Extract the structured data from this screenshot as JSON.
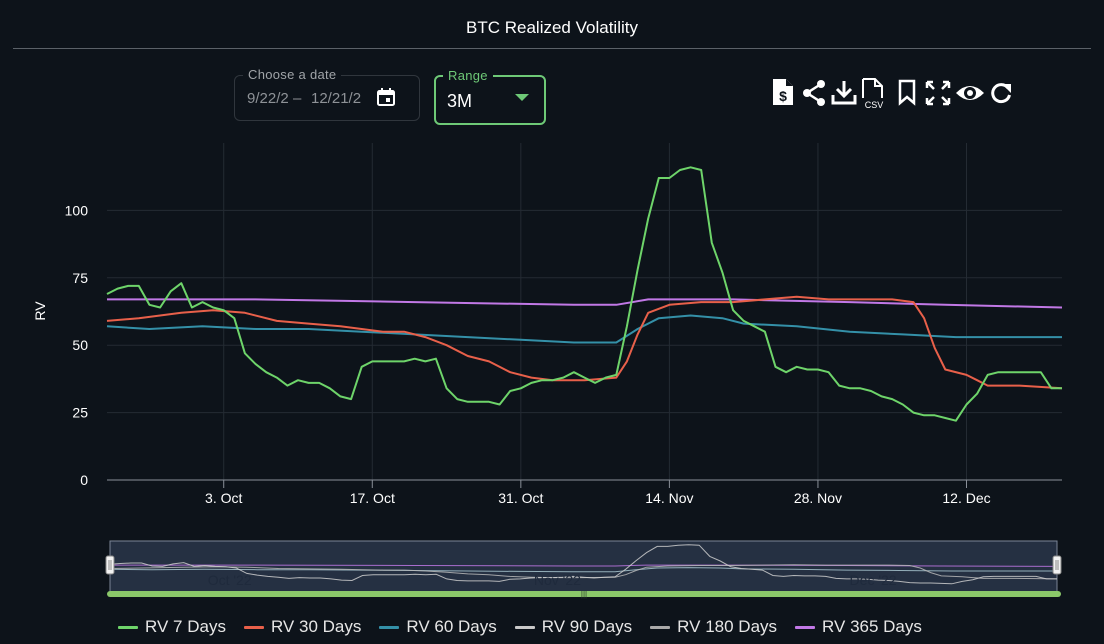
{
  "header": {
    "title": "BTC Realized Volatility"
  },
  "date_picker": {
    "label": "Choose a date",
    "start": "9/22/2",
    "separator": "–",
    "end": "12/21/2",
    "icon": "calendar-icon"
  },
  "range_select": {
    "label": "Range",
    "value": "3M",
    "icon": "caret-down-icon"
  },
  "toolbar": {
    "icons": [
      "dollar-file-icon",
      "share-icon",
      "download-icon",
      "csv-file-icon",
      "bookmark-icon",
      "fullscreen-icon",
      "eye-icon",
      "refresh-icon"
    ],
    "csv_label": "CSV"
  },
  "chart_data": {
    "type": "line",
    "title": "BTC Realized Volatility",
    "ylabel": "RV",
    "xlabel": "",
    "x_dates": [
      "2022-09-22",
      "2022-12-21"
    ],
    "ylim": [
      0,
      125
    ],
    "y_ticks": [
      0,
      25,
      50,
      75,
      100
    ],
    "x_ticks": [
      {
        "date": "2022-10-03",
        "label": "3. Oct"
      },
      {
        "date": "2022-10-17",
        "label": "17. Oct"
      },
      {
        "date": "2022-10-31",
        "label": "31. Oct"
      },
      {
        "date": "2022-11-14",
        "label": "14. Nov"
      },
      {
        "date": "2022-11-28",
        "label": "28. Nov"
      },
      {
        "date": "2022-12-12",
        "label": "12. Dec"
      }
    ],
    "grid": true,
    "legend_position": "bottom",
    "navigator": {
      "labels": [
        {
          "date": "2022-10-01",
          "label": "Oct '22"
        },
        {
          "date": "2022-11-01",
          "label": "Nov '22"
        },
        {
          "date": "2022-12-01",
          "label": "Dec '22"
        }
      ]
    },
    "series": [
      {
        "name": "RV 7 Days",
        "color": "#6ed46a",
        "points": [
          [
            "2022-09-22",
            69
          ],
          [
            "2022-09-23",
            71
          ],
          [
            "2022-09-24",
            72
          ],
          [
            "2022-09-25",
            72
          ],
          [
            "2022-09-26",
            65
          ],
          [
            "2022-09-27",
            64
          ],
          [
            "2022-09-28",
            70
          ],
          [
            "2022-09-29",
            73
          ],
          [
            "2022-09-30",
            64
          ],
          [
            "2022-10-01",
            66
          ],
          [
            "2022-10-02",
            64
          ],
          [
            "2022-10-03",
            63
          ],
          [
            "2022-10-04",
            60
          ],
          [
            "2022-10-05",
            47
          ],
          [
            "2022-10-06",
            43
          ],
          [
            "2022-10-07",
            40
          ],
          [
            "2022-10-08",
            38
          ],
          [
            "2022-10-09",
            35
          ],
          [
            "2022-10-10",
            37
          ],
          [
            "2022-10-11",
            36
          ],
          [
            "2022-10-12",
            36
          ],
          [
            "2022-10-13",
            34
          ],
          [
            "2022-10-14",
            31
          ],
          [
            "2022-10-15",
            30
          ],
          [
            "2022-10-16",
            42
          ],
          [
            "2022-10-17",
            44
          ],
          [
            "2022-10-18",
            44
          ],
          [
            "2022-10-19",
            44
          ],
          [
            "2022-10-20",
            44
          ],
          [
            "2022-10-21",
            45
          ],
          [
            "2022-10-22",
            44
          ],
          [
            "2022-10-23",
            45
          ],
          [
            "2022-10-24",
            34
          ],
          [
            "2022-10-25",
            30
          ],
          [
            "2022-10-26",
            29
          ],
          [
            "2022-10-27",
            29
          ],
          [
            "2022-10-28",
            29
          ],
          [
            "2022-10-29",
            28
          ],
          [
            "2022-10-30",
            33
          ],
          [
            "2022-10-31",
            34
          ],
          [
            "2022-11-01",
            36
          ],
          [
            "2022-11-02",
            37
          ],
          [
            "2022-11-03",
            37
          ],
          [
            "2022-11-04",
            38
          ],
          [
            "2022-11-05",
            40
          ],
          [
            "2022-11-06",
            38
          ],
          [
            "2022-11-07",
            36
          ],
          [
            "2022-11-08",
            38
          ],
          [
            "2022-11-09",
            39
          ],
          [
            "2022-11-10",
            57
          ],
          [
            "2022-11-11",
            78
          ],
          [
            "2022-11-12",
            97
          ],
          [
            "2022-11-13",
            112
          ],
          [
            "2022-11-14",
            112
          ],
          [
            "2022-11-15",
            115
          ],
          [
            "2022-11-16",
            116
          ],
          [
            "2022-11-17",
            115
          ],
          [
            "2022-11-18",
            88
          ],
          [
            "2022-11-19",
            77
          ],
          [
            "2022-11-20",
            63
          ],
          [
            "2022-11-21",
            59
          ],
          [
            "2022-11-22",
            57
          ],
          [
            "2022-11-23",
            55
          ],
          [
            "2022-11-24",
            42
          ],
          [
            "2022-11-25",
            40
          ],
          [
            "2022-11-26",
            42
          ],
          [
            "2022-11-27",
            41
          ],
          [
            "2022-11-28",
            41
          ],
          [
            "2022-11-29",
            40
          ],
          [
            "2022-11-30",
            35
          ],
          [
            "2022-12-01",
            34
          ],
          [
            "2022-12-02",
            34
          ],
          [
            "2022-12-03",
            33
          ],
          [
            "2022-12-04",
            31
          ],
          [
            "2022-12-05",
            30
          ],
          [
            "2022-12-06",
            28
          ],
          [
            "2022-12-07",
            25
          ],
          [
            "2022-12-08",
            24
          ],
          [
            "2022-12-09",
            24
          ],
          [
            "2022-12-10",
            23
          ],
          [
            "2022-12-11",
            22
          ],
          [
            "2022-12-12",
            28
          ],
          [
            "2022-12-13",
            32
          ],
          [
            "2022-12-14",
            39
          ],
          [
            "2022-12-15",
            40
          ],
          [
            "2022-12-16",
            40
          ],
          [
            "2022-12-17",
            40
          ],
          [
            "2022-12-18",
            40
          ],
          [
            "2022-12-19",
            40
          ],
          [
            "2022-12-20",
            34
          ],
          [
            "2022-12-21",
            34
          ]
        ]
      },
      {
        "name": "RV 30 Days",
        "color": "#e8604a",
        "points": [
          [
            "2022-09-22",
            59
          ],
          [
            "2022-09-25",
            60
          ],
          [
            "2022-09-27",
            61
          ],
          [
            "2022-09-29",
            62
          ],
          [
            "2022-10-02",
            63
          ],
          [
            "2022-10-05",
            62
          ],
          [
            "2022-10-08",
            59
          ],
          [
            "2022-10-11",
            58
          ],
          [
            "2022-10-14",
            57
          ],
          [
            "2022-10-16",
            56
          ],
          [
            "2022-10-18",
            55
          ],
          [
            "2022-10-20",
            55
          ],
          [
            "2022-10-22",
            53
          ],
          [
            "2022-10-24",
            50
          ],
          [
            "2022-10-26",
            46
          ],
          [
            "2022-10-28",
            44
          ],
          [
            "2022-10-30",
            40
          ],
          [
            "2022-11-01",
            38
          ],
          [
            "2022-11-03",
            37
          ],
          [
            "2022-11-06",
            37
          ],
          [
            "2022-11-09",
            38
          ],
          [
            "2022-11-10",
            44
          ],
          [
            "2022-11-11",
            54
          ],
          [
            "2022-11-12",
            62
          ],
          [
            "2022-11-14",
            65
          ],
          [
            "2022-11-17",
            66
          ],
          [
            "2022-11-20",
            66
          ],
          [
            "2022-11-23",
            67
          ],
          [
            "2022-11-26",
            68
          ],
          [
            "2022-11-29",
            67
          ],
          [
            "2022-12-02",
            67
          ],
          [
            "2022-12-05",
            67
          ],
          [
            "2022-12-07",
            66
          ],
          [
            "2022-12-08",
            60
          ],
          [
            "2022-12-09",
            49
          ],
          [
            "2022-12-10",
            41
          ],
          [
            "2022-12-12",
            39
          ],
          [
            "2022-12-13",
            37
          ],
          [
            "2022-12-14",
            35
          ],
          [
            "2022-12-17",
            35
          ],
          [
            "2022-12-21",
            34
          ]
        ]
      },
      {
        "name": "RV 60 Days",
        "color": "#3490a8",
        "points": [
          [
            "2022-09-22",
            57
          ],
          [
            "2022-09-26",
            56
          ],
          [
            "2022-10-01",
            57
          ],
          [
            "2022-10-06",
            56
          ],
          [
            "2022-10-11",
            56
          ],
          [
            "2022-10-16",
            55
          ],
          [
            "2022-10-21",
            54
          ],
          [
            "2022-10-26",
            53
          ],
          [
            "2022-10-31",
            52
          ],
          [
            "2022-11-05",
            51
          ],
          [
            "2022-11-09",
            51
          ],
          [
            "2022-11-11",
            56
          ],
          [
            "2022-11-13",
            60
          ],
          [
            "2022-11-16",
            61
          ],
          [
            "2022-11-19",
            60
          ],
          [
            "2022-11-21",
            58
          ],
          [
            "2022-11-26",
            57
          ],
          [
            "2022-12-01",
            55
          ],
          [
            "2022-12-06",
            54
          ],
          [
            "2022-12-11",
            53
          ],
          [
            "2022-12-16",
            53
          ],
          [
            "2022-12-21",
            53
          ]
        ]
      },
      {
        "name": "RV 90 Days",
        "color": "#c9c9c9",
        "points": []
      },
      {
        "name": "RV 180 Days",
        "color": "#a9a9a9",
        "points": []
      },
      {
        "name": "RV 365 Days",
        "color": "#c178e6",
        "points": [
          [
            "2022-09-22",
            67
          ],
          [
            "2022-10-06",
            67
          ],
          [
            "2022-10-21",
            66
          ],
          [
            "2022-11-05",
            65
          ],
          [
            "2022-11-09",
            65
          ],
          [
            "2022-11-12",
            67
          ],
          [
            "2022-11-20",
            67
          ],
          [
            "2022-12-01",
            66
          ],
          [
            "2022-12-10",
            65
          ],
          [
            "2022-12-21",
            64
          ]
        ]
      }
    ]
  }
}
